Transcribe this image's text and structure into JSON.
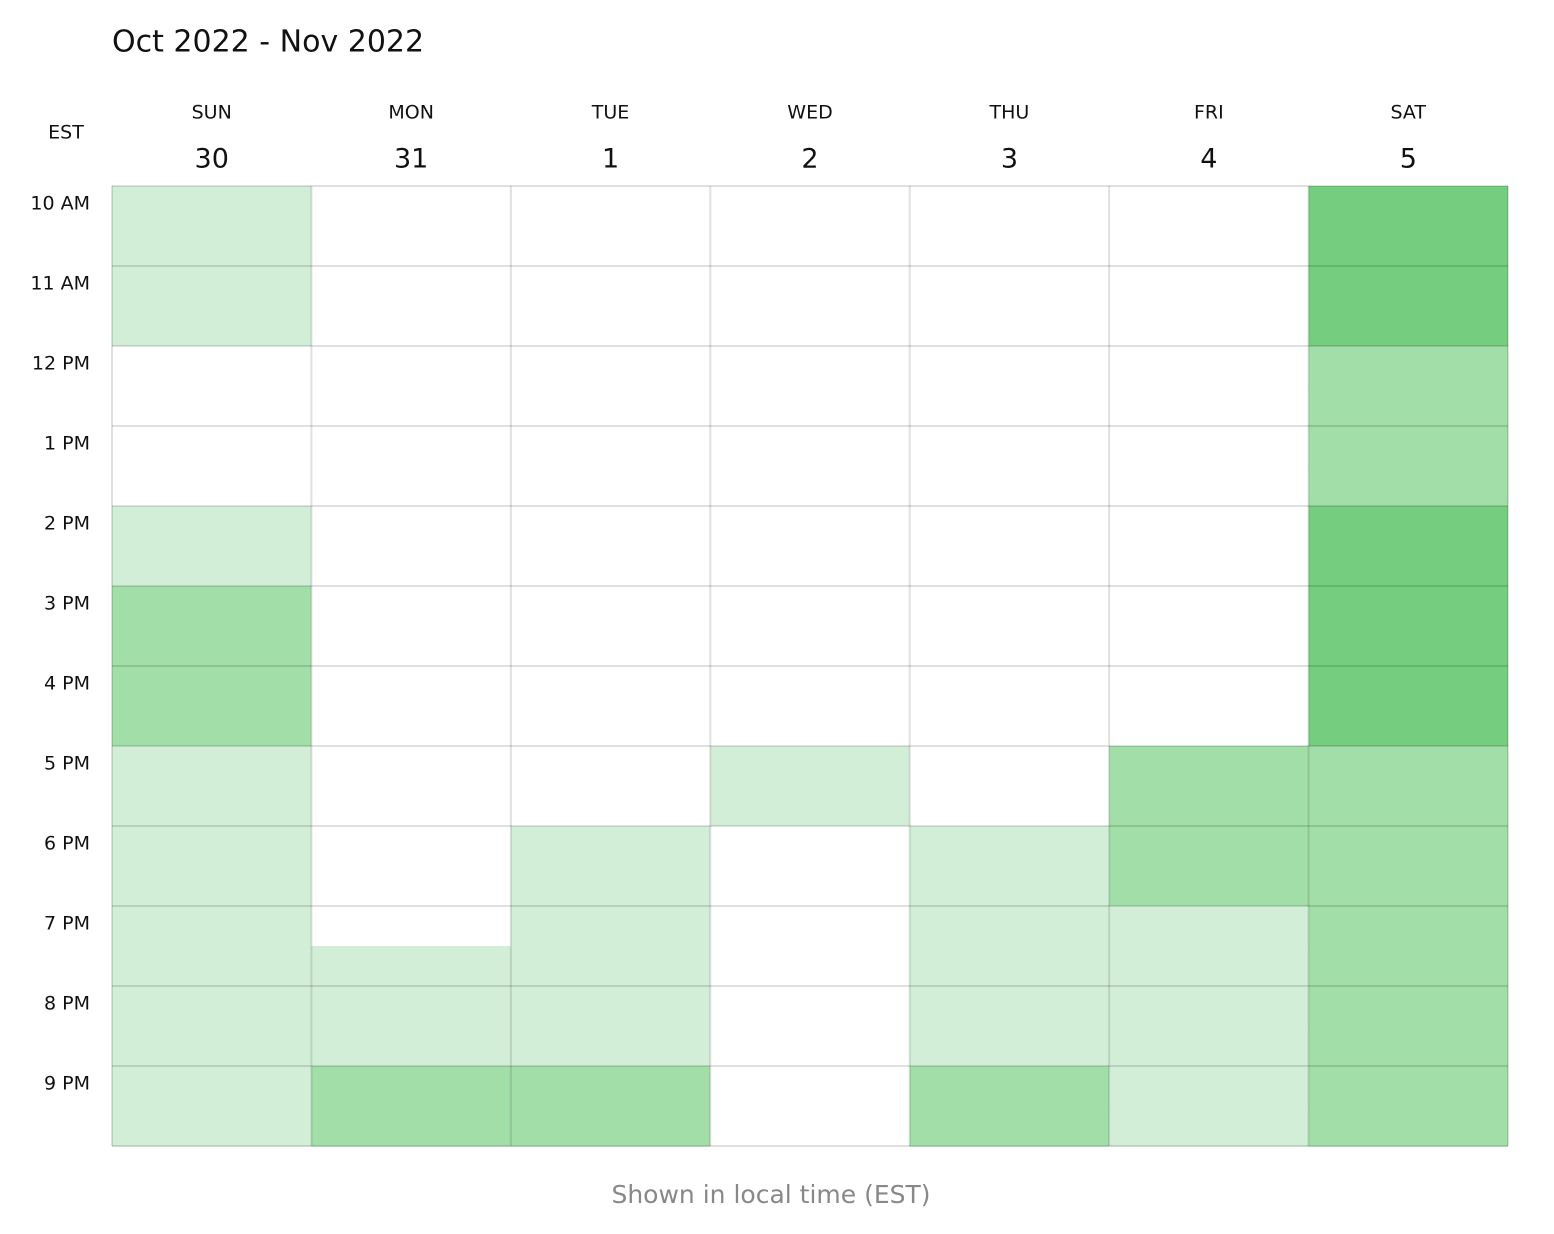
{
  "header": {
    "title": "Oct 2022 - Nov 2022"
  },
  "timezone": "EST",
  "times": [
    "10 AM",
    "11 AM",
    "12 PM",
    "1 PM",
    "2 PM",
    "3 PM",
    "4 PM",
    "5 PM",
    "6 PM",
    "7 PM",
    "8 PM",
    "9 PM"
  ],
  "level_colors": [
    "#ffffff",
    "#d2eed6",
    "#a1dea8",
    "#75ce7f"
  ],
  "days": [
    {
      "weekday": "SUN",
      "date": 30,
      "slots": [
        1,
        1,
        1,
        1,
        0,
        0,
        0,
        0,
        1,
        1,
        2,
        2,
        2,
        2,
        1,
        1,
        1,
        1,
        1,
        1,
        1,
        1,
        1,
        1
      ]
    },
    {
      "weekday": "MON",
      "date": 31,
      "slots": [
        0,
        0,
        0,
        0,
        0,
        0,
        0,
        0,
        0,
        0,
        0,
        0,
        0,
        0,
        0,
        0,
        0,
        0,
        0,
        1,
        1,
        1,
        2,
        2
      ]
    },
    {
      "weekday": "TUE",
      "date": 1,
      "slots": [
        0,
        0,
        0,
        0,
        0,
        0,
        0,
        0,
        0,
        0,
        0,
        0,
        0,
        0,
        0,
        0,
        1,
        1,
        1,
        1,
        1,
        1,
        2,
        2
      ]
    },
    {
      "weekday": "WED",
      "date": 2,
      "slots": [
        0,
        0,
        0,
        0,
        0,
        0,
        0,
        0,
        0,
        0,
        0,
        0,
        0,
        0,
        1,
        1,
        0,
        0,
        0,
        0,
        0,
        0,
        0,
        0
      ]
    },
    {
      "weekday": "THU",
      "date": 3,
      "slots": [
        0,
        0,
        0,
        0,
        0,
        0,
        0,
        0,
        0,
        0,
        0,
        0,
        0,
        0,
        0,
        0,
        1,
        1,
        1,
        1,
        1,
        1,
        2,
        2
      ]
    },
    {
      "weekday": "FRI",
      "date": 4,
      "slots": [
        0,
        0,
        0,
        0,
        0,
        0,
        0,
        0,
        0,
        0,
        0,
        0,
        0,
        0,
        2,
        2,
        2,
        2,
        1,
        1,
        1,
        1,
        1,
        1
      ]
    },
    {
      "weekday": "SAT",
      "date": 5,
      "slots": [
        3,
        3,
        3,
        3,
        2,
        2,
        2,
        2,
        3,
        3,
        3,
        3,
        3,
        3,
        2,
        2,
        2,
        2,
        2,
        2,
        2,
        2,
        2,
        2
      ]
    }
  ],
  "footer": "Shown in local time (EST)"
}
